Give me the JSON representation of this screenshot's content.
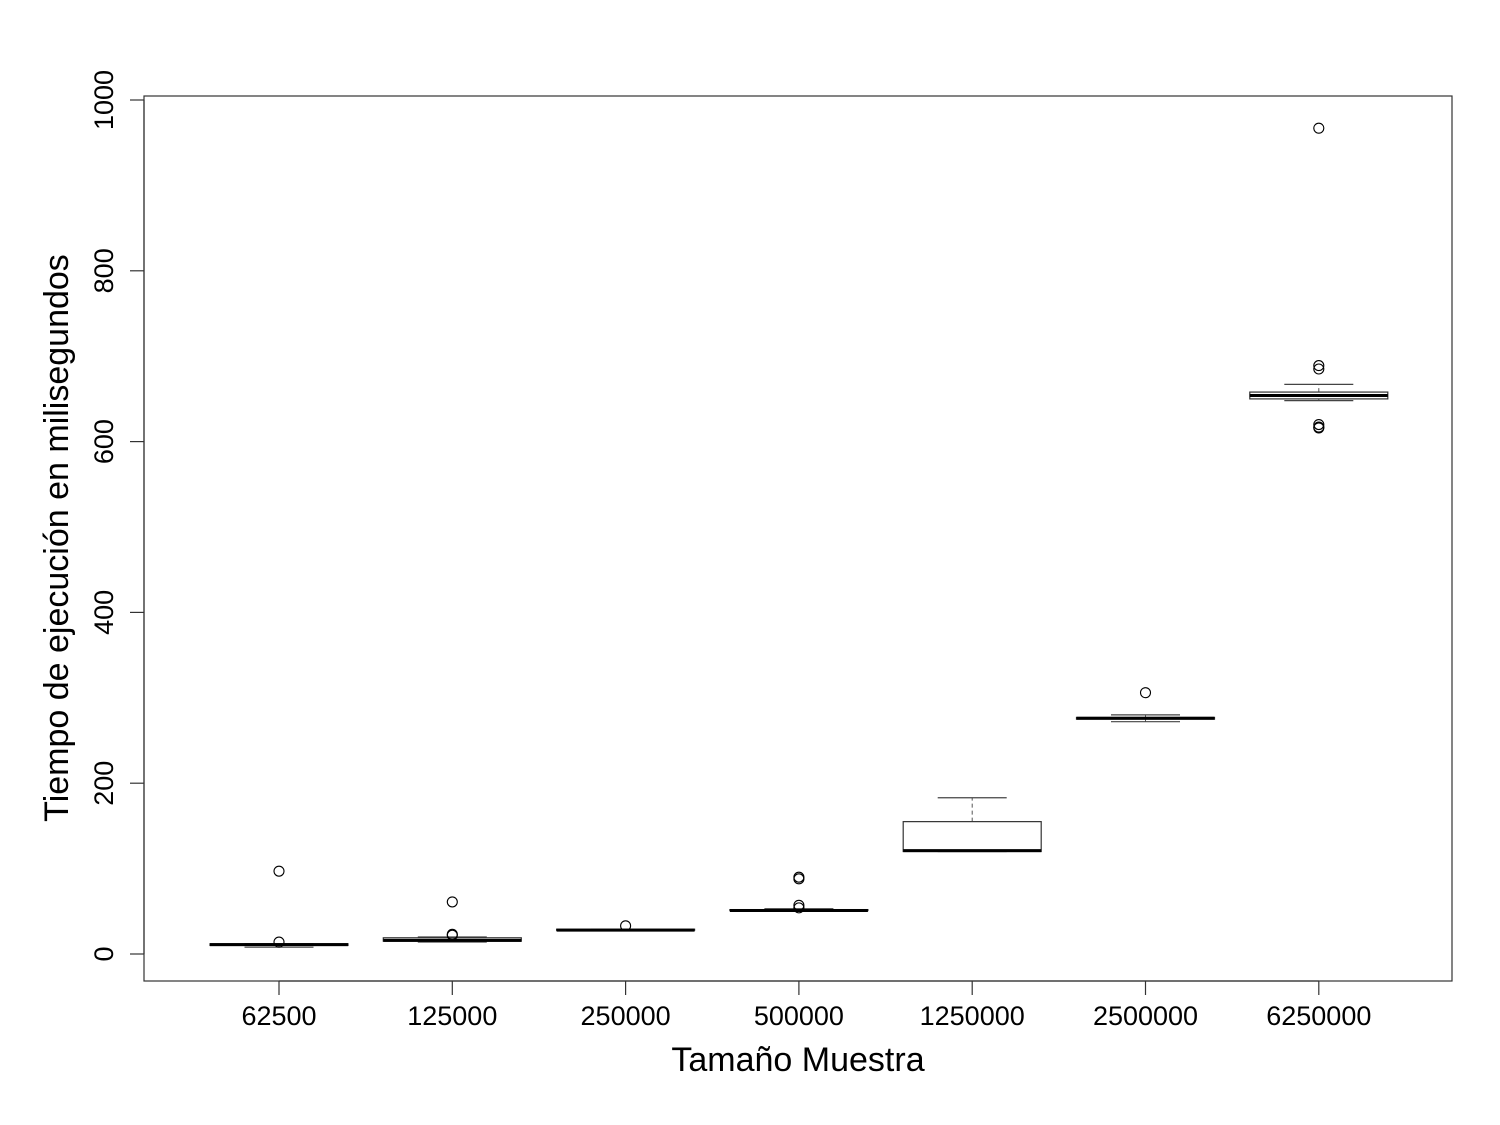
{
  "chart_data": {
    "type": "boxplot",
    "title": "",
    "xlabel": "Tamaño Muestra",
    "ylabel": "Tiempo de ejecución en milisegundos",
    "ylim": [
      -32,
      1003
    ],
    "yticks": [
      0,
      200,
      400,
      600,
      800,
      1000
    ],
    "grid": false,
    "categories": [
      "62500",
      "125000",
      "250000",
      "500000",
      "1250000",
      "2500000",
      "6250000"
    ],
    "boxes": [
      {
        "category": "62500",
        "whisker_low": 8,
        "q1": 10,
        "median": 11,
        "q3": 12,
        "whisker_high": 12,
        "outliers": [
          97,
          14
        ]
      },
      {
        "category": "125000",
        "whisker_low": 14,
        "q1": 15,
        "median": 16,
        "q3": 19,
        "whisker_high": 20,
        "outliers": [
          61,
          23,
          22
        ]
      },
      {
        "category": "250000",
        "whisker_low": 27,
        "q1": 28,
        "median": 28,
        "q3": 29,
        "whisker_high": 29,
        "outliers": [
          33
        ]
      },
      {
        "category": "500000",
        "whisker_low": 50,
        "q1": 51,
        "median": 51,
        "q3": 52,
        "whisker_high": 53,
        "outliers": [
          90,
          88,
          57,
          54
        ]
      },
      {
        "category": "1250000",
        "whisker_low": 120,
        "q1": 120,
        "median": 121,
        "q3": 155,
        "whisker_high": 183,
        "outliers": []
      },
      {
        "category": "2500000",
        "whisker_low": 272,
        "q1": 275,
        "median": 276,
        "q3": 277,
        "whisker_high": 280,
        "outliers": [
          306
        ]
      },
      {
        "category": "6250000",
        "whisker_low": 648,
        "q1": 650,
        "median": 654,
        "q3": 658,
        "whisker_high": 667,
        "outliers": [
          967,
          689,
          685,
          620,
          617,
          616
        ]
      }
    ]
  }
}
